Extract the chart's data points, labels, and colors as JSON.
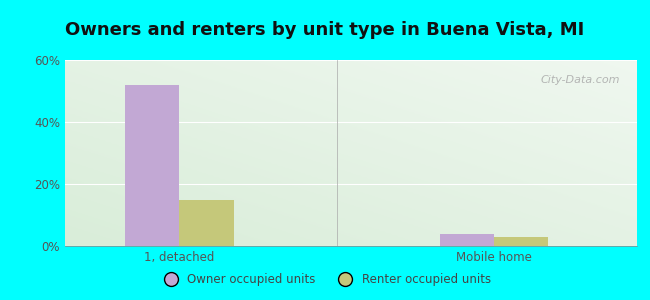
{
  "title": "Owners and renters by unit type in Buena Vista, MI",
  "categories": [
    "1, detached",
    "Mobile home"
  ],
  "owner_values": [
    52,
    4
  ],
  "renter_values": [
    15,
    3
  ],
  "owner_color": "#c2a8d4",
  "renter_color": "#c5c87a",
  "ylim": [
    0,
    60
  ],
  "yticks": [
    0,
    20,
    40,
    60
  ],
  "ytick_labels": [
    "0%",
    "20%",
    "40%",
    "60%"
  ],
  "bar_width": 0.38,
  "group_positions": [
    1.0,
    3.2
  ],
  "xlim": [
    0.2,
    4.2
  ],
  "legend_owner": "Owner occupied units",
  "legend_renter": "Renter occupied units",
  "outer_bg": "#00ffff",
  "title_fontsize": 13,
  "watermark": "City-Data.com",
  "bg_top_color": "#e8f0e8",
  "bg_bottom_color": "#d8ecd8"
}
